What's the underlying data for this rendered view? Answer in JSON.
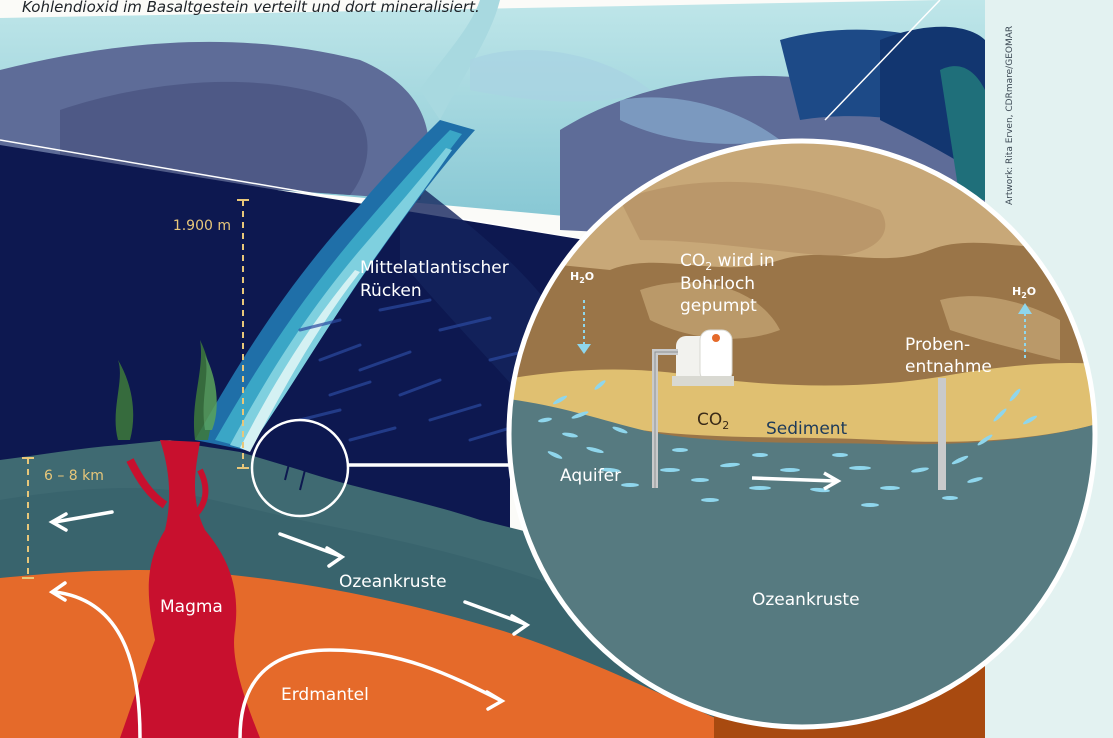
{
  "caption": "Kohlendioxid im Basaltgestein verteilt und dort mineralisiert.",
  "credit": "Artwork: Rita Erven, CDRmare/GEOMAR",
  "labels": {
    "ridge_line1": "Mittelatlantischer",
    "ridge_line2": "Rücken",
    "depth_water": "1.900 m",
    "depth_crust": "6 – 8 km",
    "magma": "Magma",
    "ocean_crust": "Ozeankruste",
    "mantle": "Erdmantel"
  },
  "inset": {
    "co2_line1_main": "CO",
    "co2_line1_sub": "2",
    "co2_line1_rest": " wird in",
    "co2_line2": "Bohrloch",
    "co2_line3": "gepumpt",
    "h2o_left_main": "H",
    "h2o_left_sub": "2",
    "h2o_left_rest": "O",
    "h2o_right_main": "H",
    "h2o_right_sub": "2",
    "h2o_right_rest": "O",
    "sample_line1": "Proben-",
    "sample_line2": "entnahme",
    "co2_main": "CO",
    "co2_sub": "2",
    "sediment": "Sediment",
    "aquifer": "Aquifer",
    "ocean_crust": "Ozeankruste"
  },
  "colors": {
    "deep_sea": "#0d1850",
    "mantle": "#e56a2a",
    "magma": "#c8102e",
    "crust": "#3f6a72",
    "inset_rock": "#9a7548",
    "inset_sand": "#e0c071",
    "inset_crust": "#567a80",
    "water_particles": "#8fd6ec"
  }
}
